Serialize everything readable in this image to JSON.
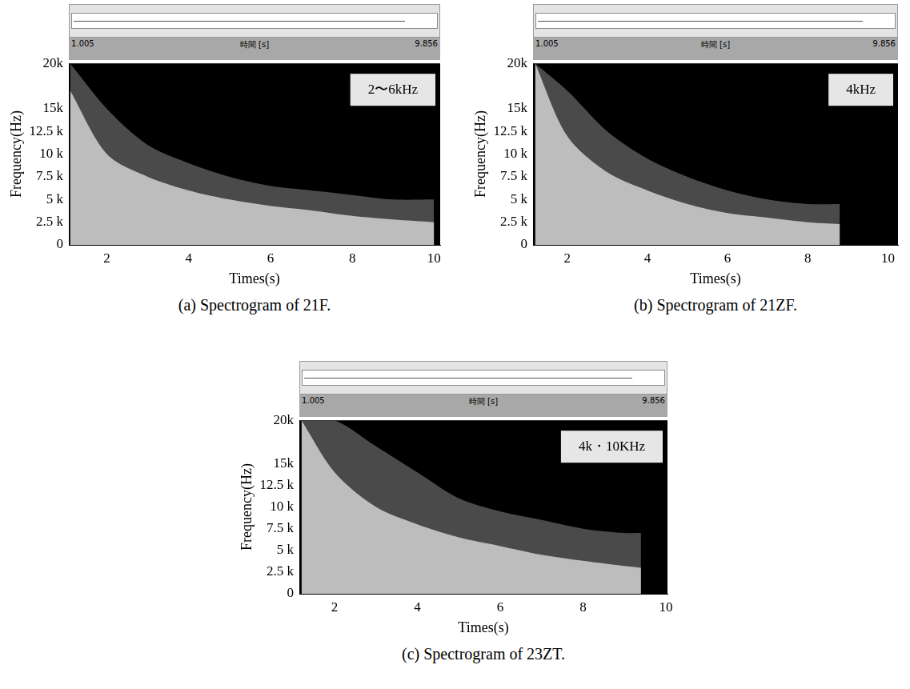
{
  "chart_data": [
    {
      "type": "area",
      "title": "(a) Spectrogram of 21F.",
      "annotation": "2〜6kHz",
      "x_label": "Times(s)",
      "y_label": "Frequency(Hz)",
      "waveform": {
        "start": 1.005,
        "label": "時間 [s]",
        "end": 9.856
      },
      "xlim": [
        1.07,
        10.15
      ],
      "xticks": [
        2,
        4,
        6,
        8,
        10
      ],
      "ylim": [
        0,
        20000
      ],
      "yticks": [
        0,
        {
          "value": 2500,
          "label": "2.5 k"
        },
        {
          "value": 5000,
          "label": "5 k"
        },
        {
          "value": 7500,
          "label": "7.5 k"
        },
        {
          "value": 10000,
          "label": "10 k"
        },
        {
          "value": 12500,
          "label": "12.5 k"
        },
        {
          "value": 15000,
          "label": "15k"
        },
        {
          "value": 20000,
          "label": "20k"
        }
      ],
      "grid": false,
      "series": [
        {
          "color": "#bdbdbd",
          "x": [
            1.1,
            2,
            3,
            4,
            5,
            6,
            7,
            8,
            9,
            10
          ],
          "values": [
            17000,
            10000,
            7500,
            6000,
            5000,
            4300,
            3800,
            3200,
            2800,
            2500
          ]
        },
        {
          "color": "#4a4a4a",
          "x": [
            1.1,
            2,
            3,
            4,
            5,
            6,
            7,
            8,
            9,
            10
          ],
          "values": [
            20000,
            15000,
            11000,
            9000,
            7500,
            6500,
            6000,
            5500,
            5000,
            5000
          ]
        }
      ]
    },
    {
      "type": "area",
      "title": "(b) Spectrogram of 21ZF.",
      "annotation": "4kHz",
      "x_label": "Times(s)",
      "y_label": "Frequency(Hz)",
      "waveform": {
        "start": 1.005,
        "label": "時間 [s]",
        "end": 9.856
      },
      "xlim": [
        1.15,
        10.25
      ],
      "xticks": [
        2,
        4,
        6,
        8,
        10
      ],
      "ylim": [
        0,
        20000
      ],
      "yticks": [
        0,
        {
          "value": 2500,
          "label": "2.5 k"
        },
        {
          "value": 5000,
          "label": "5 k"
        },
        {
          "value": 7500,
          "label": "7.5 k"
        },
        {
          "value": 10000,
          "label": "10 k"
        },
        {
          "value": 12500,
          "label": "12.5 k"
        },
        {
          "value": 15000,
          "label": "15k"
        },
        {
          "value": 20000,
          "label": "20k"
        }
      ],
      "grid": false,
      "series": [
        {
          "color": "#bdbdbd",
          "x": [
            1.2,
            2,
            3,
            4,
            5,
            6,
            7,
            8,
            8.8
          ],
          "values": [
            20000,
            12000,
            8000,
            6000,
            4500,
            3500,
            3000,
            2500,
            2300
          ]
        },
        {
          "color": "#4a4a4a",
          "x": [
            1.2,
            2,
            3,
            4,
            5,
            6,
            7,
            8,
            8.8
          ],
          "values": [
            20000,
            17000,
            12500,
            9500,
            7500,
            6000,
            5000,
            4500,
            4500
          ]
        }
      ]
    },
    {
      "type": "area",
      "title": "(c) Spectrogram of 23ZT.",
      "annotation": "4k・10KHz",
      "x_label": "Times(s)",
      "y_label": "Frequency(Hz)",
      "waveform": {
        "start": 1.005,
        "label": "時間 [s]",
        "end": 9.856
      },
      "xlim": [
        1.15,
        10.04
      ],
      "xticks": [
        2,
        4,
        6,
        8,
        10
      ],
      "ylim": [
        0,
        20000
      ],
      "yticks": [
        0,
        {
          "value": 2500,
          "label": "2.5 k"
        },
        {
          "value": 5000,
          "label": "5 k"
        },
        {
          "value": 7500,
          "label": "7.5 k"
        },
        {
          "value": 10000,
          "label": "10 k"
        },
        {
          "value": 12500,
          "label": "12.5 k"
        },
        {
          "value": 15000,
          "label": "15k"
        },
        {
          "value": 20000,
          "label": "20k"
        }
      ],
      "grid": false,
      "series": [
        {
          "color": "#bdbdbd",
          "x": [
            1.2,
            2,
            3,
            4,
            5,
            6,
            7,
            8,
            9,
            9.4
          ],
          "values": [
            20000,
            14000,
            10000,
            8000,
            6500,
            5500,
            4500,
            3800,
            3200,
            3000
          ]
        },
        {
          "color": "#4a4a4a",
          "x": [
            1.2,
            2,
            3,
            4,
            5,
            6,
            7,
            8,
            9,
            9.4
          ],
          "values": [
            20000,
            20000,
            17000,
            14000,
            11000,
            9500,
            8500,
            7500,
            7000,
            7000
          ]
        }
      ]
    }
  ]
}
